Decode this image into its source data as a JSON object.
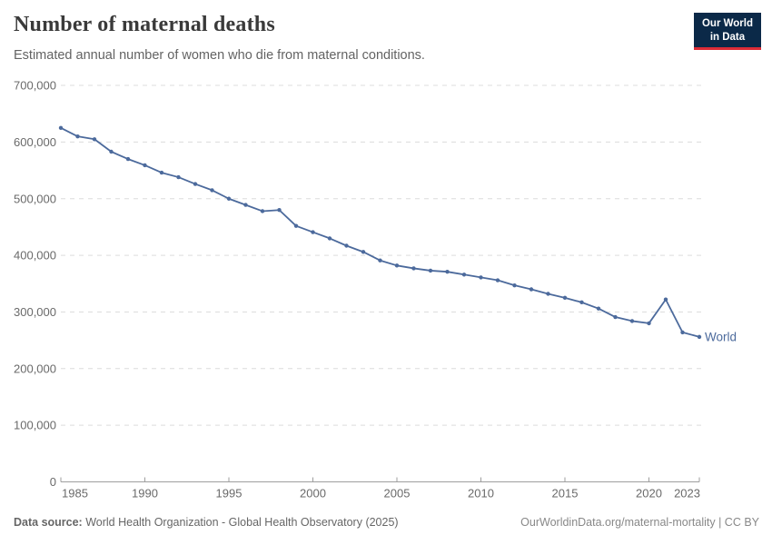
{
  "header": {
    "title": "Number of maternal deaths",
    "subtitle": "Estimated annual number of women who die from maternal conditions."
  },
  "logo": {
    "line1": "Our World",
    "line2": "in Data"
  },
  "footer": {
    "source_label": "Data source:",
    "source_text": " World Health Organization - Global Health Observatory (2025)",
    "right_text": "OurWorldinData.org/maternal-mortality | CC BY"
  },
  "colors": {
    "line": "#4c6a9c",
    "entity_label": "#4c6a9c",
    "grid": "#dcdcdc",
    "axis": "#9e9e9e",
    "tick_label": "#6a6a6a",
    "logo_bg": "#0b2948",
    "logo_red": "#dd2c37"
  },
  "chart_data": {
    "type": "line",
    "title": "Number of maternal deaths",
    "subtitle": "Estimated annual number of women who die from maternal conditions.",
    "xlabel": "",
    "ylabel": "",
    "xlim": [
      1985,
      2023
    ],
    "ylim": [
      0,
      700000
    ],
    "grid": "horizontal-dashed",
    "legend_position": "end-of-line",
    "x_ticks": [
      1985,
      1990,
      1995,
      2000,
      2005,
      2010,
      2015,
      2020,
      2023
    ],
    "y_ticks": [
      0,
      100000,
      200000,
      300000,
      400000,
      500000,
      600000,
      700000
    ],
    "x": [
      1985,
      1986,
      1987,
      1988,
      1989,
      1990,
      1991,
      1992,
      1993,
      1994,
      1995,
      1996,
      1997,
      1998,
      1999,
      2000,
      2001,
      2002,
      2003,
      2004,
      2005,
      2006,
      2007,
      2008,
      2009,
      2010,
      2011,
      2012,
      2013,
      2014,
      2015,
      2016,
      2017,
      2018,
      2019,
      2020,
      2021,
      2022,
      2023
    ],
    "series": [
      {
        "name": "World",
        "values": [
          625000,
          610000,
          605000,
          583000,
          570000,
          559000,
          546000,
          538000,
          526000,
          515000,
          500000,
          489000,
          478000,
          480000,
          452000,
          441000,
          430000,
          417000,
          406000,
          391000,
          382000,
          377000,
          373000,
          371000,
          366000,
          361000,
          356000,
          347000,
          340000,
          332000,
          325000,
          317000,
          306000,
          291000,
          284000,
          280000,
          322000,
          264000,
          256000
        ]
      }
    ]
  }
}
